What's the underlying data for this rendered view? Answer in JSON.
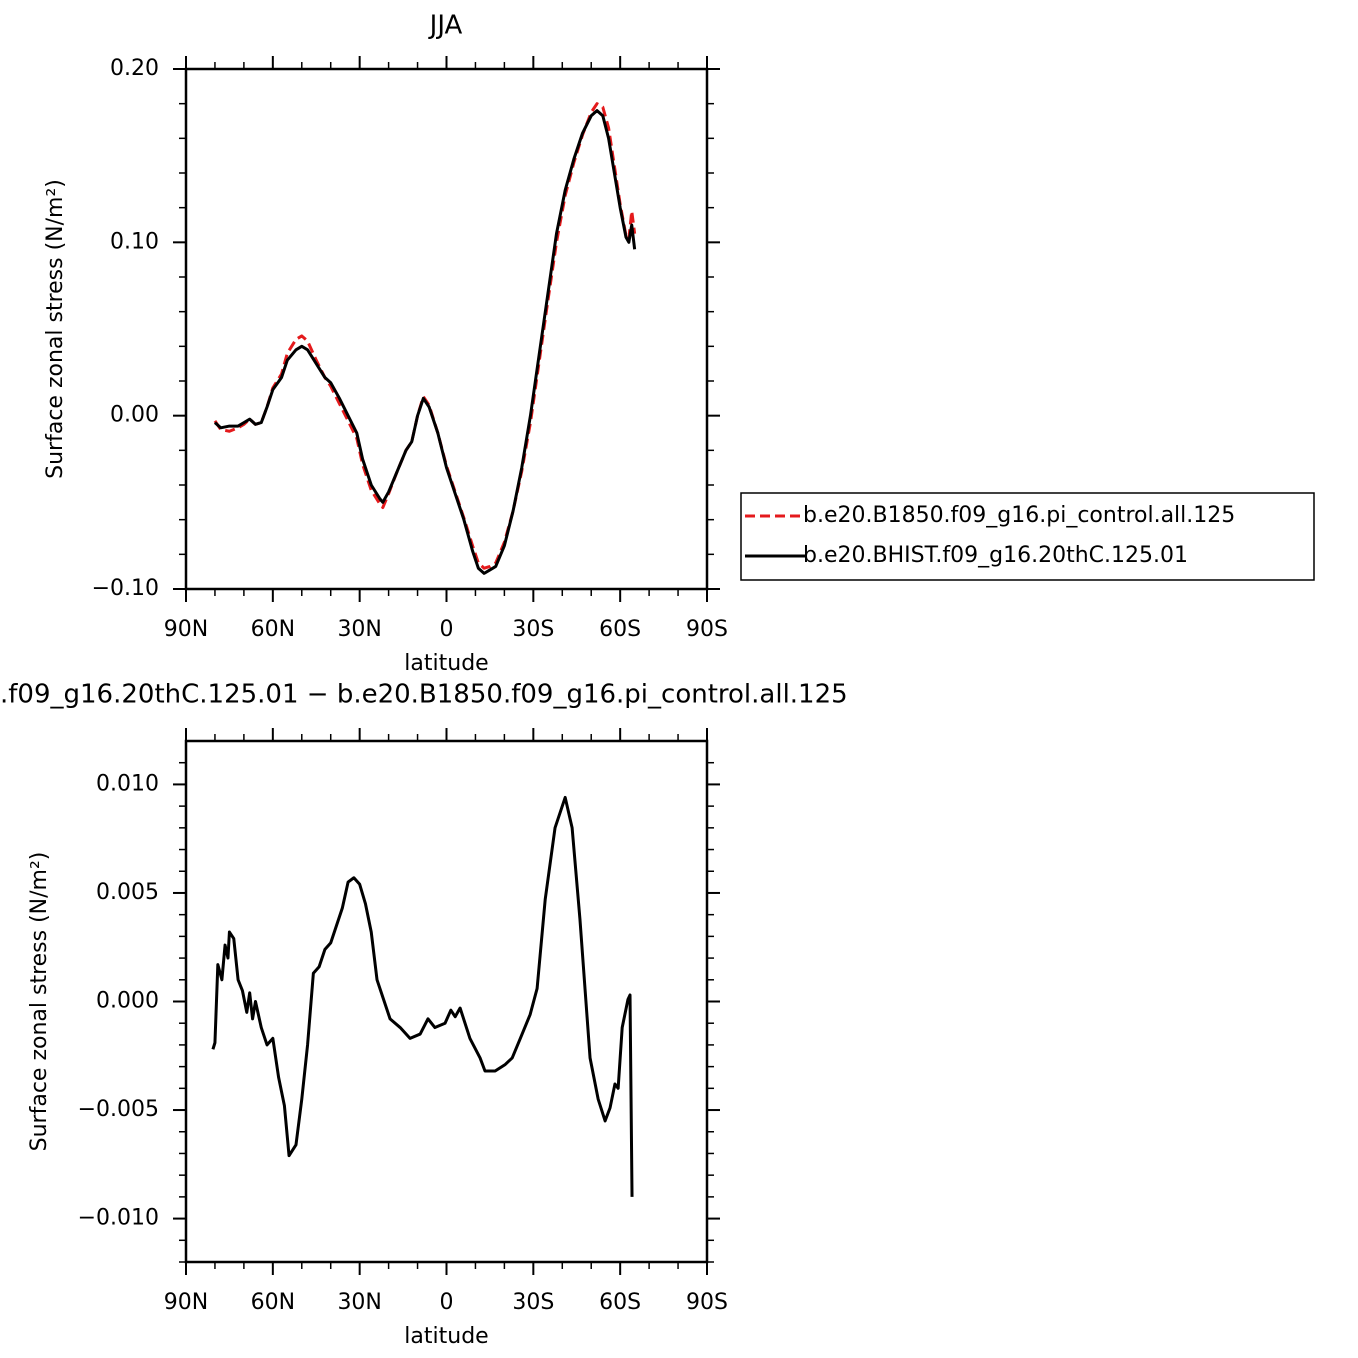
{
  "chart_data": [
    {
      "type": "line",
      "title": "JJA",
      "xlabel": "latitude",
      "ylabel": "Surface zonal stress (N/m²)",
      "xlim": [
        90,
        -90
      ],
      "xticks": [
        {
          "value": 90,
          "label": "90N"
        },
        {
          "value": 60,
          "label": "60N"
        },
        {
          "value": 30,
          "label": "30N"
        },
        0,
        {
          "value": -30,
          "label": "30S"
        },
        {
          "value": -60,
          "label": "60S"
        },
        {
          "value": -90,
          "label": "90S"
        }
      ],
      "ylim": [
        -0.1,
        0.2
      ],
      "yticks": [
        {
          "value": 0.2,
          "label": "0.20"
        },
        {
          "value": 0.1,
          "label": "0.10"
        },
        {
          "value": 0,
          "label": "0.00"
        },
        {
          "value": -0.1,
          "label": "−0.10"
        }
      ],
      "x": [
        80,
        78,
        75,
        72,
        70,
        68,
        66,
        64,
        62,
        60,
        57,
        55,
        52,
        50,
        48,
        45,
        42,
        40,
        37,
        34,
        31,
        29,
        26,
        23,
        22,
        20,
        17,
        14,
        12,
        10,
        8,
        6,
        3,
        0,
        -3,
        -6,
        -9,
        -11,
        -13,
        -15,
        -17,
        -20,
        -23,
        -26,
        -29,
        -32,
        -35,
        -38,
        -41,
        -44,
        -47,
        -50,
        -52,
        -54,
        -56,
        -58,
        -60,
        -62,
        -63,
        -64,
        -65
      ],
      "series": [
        {
          "name": "b.e20.B1850.f09_g16.pi_control.all.125",
          "color": "#e41a1c",
          "linestyle": "dashed",
          "values": [
            -0.003,
            -0.008,
            -0.009,
            -0.007,
            -0.005,
            -0.002,
            -0.005,
            -0.004,
            0.005,
            0.016,
            0.024,
            0.036,
            0.044,
            0.046,
            0.043,
            0.032,
            0.022,
            0.017,
            0.007,
            -0.003,
            -0.013,
            -0.028,
            -0.043,
            -0.051,
            -0.053,
            -0.045,
            -0.032,
            -0.02,
            -0.015,
            0.0,
            0.011,
            0.006,
            -0.01,
            -0.029,
            -0.044,
            -0.059,
            -0.075,
            -0.085,
            -0.088,
            -0.087,
            -0.085,
            -0.073,
            -0.055,
            -0.032,
            -0.004,
            0.031,
            0.066,
            0.1,
            0.127,
            0.146,
            0.162,
            0.175,
            0.18,
            0.178,
            0.166,
            0.144,
            0.122,
            0.104,
            0.102,
            0.118,
            0.105
          ]
        },
        {
          "name": "b.e20.BHIST.f09_g16.20thC.125.01",
          "color": "#000000",
          "linestyle": "solid",
          "values": [
            -0.004,
            -0.007,
            -0.006,
            -0.006,
            -0.004,
            -0.002,
            -0.005,
            -0.004,
            0.005,
            0.015,
            0.022,
            0.032,
            0.038,
            0.04,
            0.038,
            0.03,
            0.022,
            0.019,
            0.01,
            0.0,
            -0.01,
            -0.025,
            -0.04,
            -0.048,
            -0.05,
            -0.044,
            -0.032,
            -0.02,
            -0.015,
            0.0,
            0.01,
            0.005,
            -0.01,
            -0.03,
            -0.045,
            -0.06,
            -0.078,
            -0.088,
            -0.091,
            -0.089,
            -0.087,
            -0.075,
            -0.055,
            -0.03,
            0.0,
            0.035,
            0.07,
            0.105,
            0.13,
            0.148,
            0.163,
            0.173,
            0.176,
            0.173,
            0.16,
            0.14,
            0.12,
            0.103,
            0.1,
            0.11,
            0.096
          ]
        }
      ]
    },
    {
      "type": "line",
      "title": ".f09_g16.20thC.125.01  −  b.e20.B1850.f09_g16.pi_control.all.125",
      "xlabel": "latitude",
      "ylabel": "Surface zonal stress (N/m²)",
      "xlim": [
        90,
        -90
      ],
      "xticks": [
        {
          "value": 90,
          "label": "90N"
        },
        {
          "value": 60,
          "label": "60N"
        },
        {
          "value": 30,
          "label": "30N"
        },
        0,
        {
          "value": -30,
          "label": "30S"
        },
        {
          "value": -60,
          "label": "60S"
        },
        {
          "value": -90,
          "label": "90S"
        }
      ],
      "ylim": [
        -0.012,
        0.012
      ],
      "yticks": [
        {
          "value": 0.01,
          "label": "0.010"
        },
        {
          "value": 0.005,
          "label": "0.005"
        },
        {
          "value": 0,
          "label": "0.000"
        },
        {
          "value": -0.005,
          "label": "−0.005"
        },
        {
          "value": -0.01,
          "label": "−0.010"
        }
      ],
      "series": [
        {
          "color": "#000000",
          "linestyle": "solid",
          "x": [
            80.7,
            80,
            79,
            77.6,
            76.5,
            75.5,
            75,
            73.5,
            72,
            70.5,
            69,
            68,
            67,
            66,
            64,
            62,
            60,
            58,
            56,
            54.4,
            52,
            50,
            48,
            46,
            44,
            42,
            40,
            38,
            36,
            34,
            32,
            30,
            28,
            26,
            24,
            19.5,
            16,
            12.6,
            9.1,
            6.4,
            4,
            0.5,
            -1.5,
            -3,
            -4.7,
            -8.1,
            -11.6,
            -13.3,
            -16.8,
            -20.3,
            -22.7,
            -25.5,
            -28.9,
            -31.3,
            -34.1,
            -37.5,
            -41,
            -43.4,
            -46.1,
            -49.6,
            -52.4,
            -54.8,
            -56.5,
            -58.2,
            -59.3,
            -60.7,
            -62.7,
            -63.4,
            -64.1
          ],
          "values": [
            -0.0022,
            -0.0019,
            0.0017,
            0.001,
            0.0026,
            0.002,
            0.0032,
            0.0029,
            0.001,
            0.0005,
            -0.0005,
            0.0004,
            -0.0008,
            0.0,
            -0.0012,
            -0.002,
            -0.0017,
            -0.0035,
            -0.0048,
            -0.0071,
            -0.0066,
            -0.0045,
            -0.002,
            0.0013,
            0.0016,
            0.0024,
            0.0027,
            0.0035,
            0.0043,
            0.0055,
            0.0057,
            0.0054,
            0.0045,
            0.0032,
            0.001,
            -0.0008,
            -0.0012,
            -0.0017,
            -0.0015,
            -0.0008,
            -0.0012,
            -0.001,
            -0.0004,
            -0.0007,
            -0.0003,
            -0.0017,
            -0.0026,
            -0.0032,
            -0.0032,
            -0.0029,
            -0.0026,
            -0.0017,
            -0.0006,
            0.0006,
            0.0047,
            0.008,
            0.0094,
            0.008,
            0.0038,
            -0.0026,
            -0.0045,
            -0.0055,
            -0.0049,
            -0.0038,
            -0.004,
            -0.0012,
            0.0001,
            0.0003,
            -0.009
          ]
        }
      ]
    }
  ]
}
